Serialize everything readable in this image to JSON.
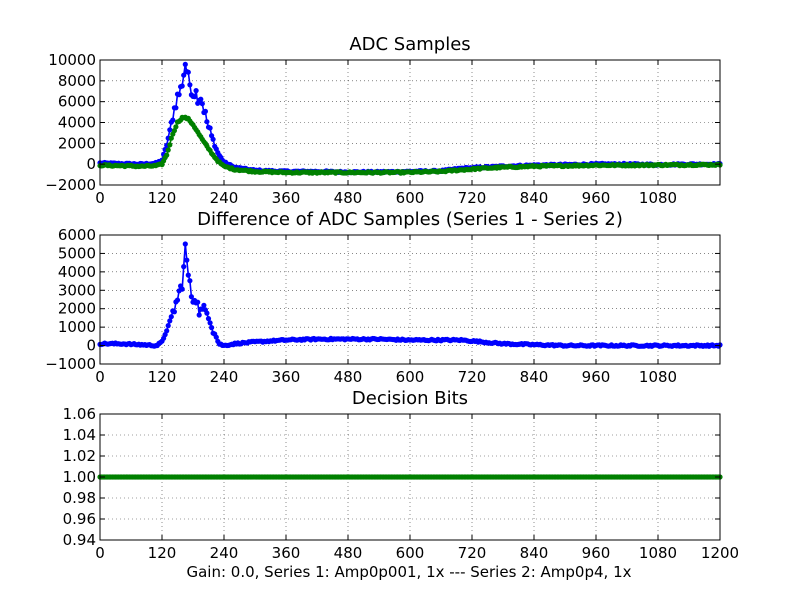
{
  "figure": {
    "xlabel": "Gain: 0.0, Series 1: Amp0p001, 1x --- Series 2: Amp0p4, 1x"
  },
  "chart_data": [
    {
      "type": "line",
      "title": "ADC Samples",
      "xlim": [
        0,
        1200
      ],
      "ylim": [
        -2000,
        10000
      ],
      "xticks": [
        0,
        120,
        240,
        360,
        480,
        600,
        720,
        840,
        960,
        1080
      ],
      "yticks": [
        -2000,
        0,
        2000,
        4000,
        6000,
        8000,
        10000
      ],
      "grid": true,
      "marker": "dot",
      "series": [
        {
          "color": "#0000ff",
          "x": [
            0,
            40,
            80,
            110,
            120,
            130,
            140,
            150,
            155,
            160,
            165,
            170,
            175,
            180,
            185,
            190,
            195,
            200,
            210,
            220,
            230,
            240,
            260,
            300,
            360,
            420,
            480,
            540,
            600,
            660,
            700,
            740,
            780,
            840,
            900,
            960,
            1020,
            1080,
            1140,
            1200
          ],
          "y": [
            100,
            50,
            0,
            100,
            400,
            2000,
            4500,
            6500,
            7000,
            8000,
            9700,
            8500,
            7500,
            6800,
            7000,
            6300,
            6500,
            5500,
            3500,
            2000,
            900,
            200,
            -300,
            -600,
            -700,
            -700,
            -750,
            -750,
            -700,
            -650,
            -400,
            -300,
            -200,
            -100,
            -50,
            0,
            0,
            -50,
            0,
            0
          ]
        },
        {
          "color": "#008000",
          "x": [
            0,
            40,
            80,
            110,
            120,
            130,
            140,
            150,
            160,
            170,
            180,
            190,
            200,
            210,
            220,
            230,
            240,
            260,
            300,
            360,
            420,
            480,
            540,
            600,
            660,
            700,
            740,
            780,
            840,
            900,
            960,
            1020,
            1080,
            1140,
            1200
          ],
          "y": [
            -100,
            -150,
            -200,
            -150,
            0,
            1000,
            2800,
            4000,
            4500,
            4400,
            3800,
            3000,
            2200,
            1500,
            800,
            200,
            -200,
            -500,
            -700,
            -800,
            -800,
            -800,
            -800,
            -780,
            -700,
            -550,
            -400,
            -300,
            -200,
            -150,
            -100,
            -100,
            -80,
            -60,
            -50
          ]
        }
      ]
    },
    {
      "type": "line",
      "title": "Difference of ADC Samples (Series 1 - Series 2)",
      "xlim": [
        0,
        1200
      ],
      "ylim": [
        -1000,
        6000
      ],
      "xticks": [
        0,
        120,
        240,
        360,
        480,
        600,
        720,
        840,
        960,
        1080
      ],
      "yticks": [
        -1000,
        0,
        1000,
        2000,
        3000,
        4000,
        5000,
        6000
      ],
      "grid": true,
      "marker": "dot",
      "series": [
        {
          "color": "#0000ff",
          "x": [
            0,
            40,
            80,
            110,
            120,
            130,
            140,
            150,
            155,
            160,
            165,
            170,
            175,
            180,
            185,
            190,
            195,
            200,
            210,
            220,
            230,
            240,
            260,
            300,
            360,
            420,
            480,
            540,
            600,
            660,
            700,
            740,
            780,
            840,
            900,
            960,
            1020,
            1080,
            1140,
            1200
          ],
          "y": [
            100,
            100,
            50,
            0,
            200,
            900,
            1700,
            2500,
            3000,
            3500,
            5300,
            4100,
            3000,
            2500,
            2800,
            2000,
            1800,
            1900,
            1800,
            800,
            100,
            0,
            100,
            200,
            300,
            350,
            350,
            350,
            300,
            300,
            300,
            200,
            100,
            50,
            0,
            0,
            0,
            0,
            0,
            0
          ]
        }
      ]
    },
    {
      "type": "line",
      "title": "Decision Bits",
      "xlim": [
        0,
        1200
      ],
      "ylim": [
        0.94,
        1.06
      ],
      "xticks": [
        0,
        120,
        240,
        360,
        480,
        600,
        720,
        840,
        960,
        1080,
        1200
      ],
      "yticks": [
        0.94,
        0.96,
        0.98,
        1.0,
        1.02,
        1.04,
        1.06
      ],
      "ytick_labels": [
        "0.94",
        "0.96",
        "0.98",
        "1.00",
        "1.02",
        "1.04",
        "1.06"
      ],
      "grid": true,
      "marker": "dot",
      "series": [
        {
          "color": "#008000",
          "x": [
            0,
            1200
          ],
          "y": [
            1.0,
            1.0
          ]
        }
      ]
    }
  ]
}
